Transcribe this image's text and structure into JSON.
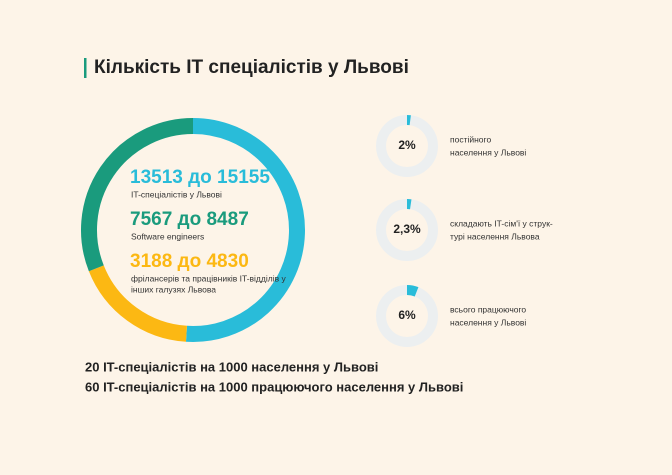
{
  "title": "Кількість IT спеціалістів у Львові",
  "chart_data": [
    {
      "type": "donut",
      "values": [
        51,
        18,
        31
      ],
      "colors": [
        "#29bcd9",
        "#fcb813",
        "#1a9b7d"
      ]
    },
    {
      "type": "donut",
      "values": [
        2
      ],
      "value_labels": [
        "2%"
      ],
      "color": "#29bcd9",
      "caption": [
        "постійного",
        "населення у Львові"
      ]
    },
    {
      "type": "donut",
      "values": [
        2.3
      ],
      "value_labels": [
        "2,3%"
      ],
      "color": "#29bcd9",
      "caption": [
        "складають IT-сім'ї у струк-",
        "турі населення Львова"
      ]
    },
    {
      "type": "donut",
      "values": [
        6
      ],
      "value_labels": [
        "6%"
      ],
      "color": "#29bcd9",
      "caption": [
        "всього працюючого",
        "населення у Львові"
      ]
    }
  ],
  "stats": [
    {
      "value": "13513 до 15155",
      "label": [
        "IT-спеціалістів у Львові"
      ],
      "color": "#29bcd9"
    },
    {
      "value": "7567 до 8487",
      "label": [
        "Software engineers"
      ],
      "color": "#1a9b7d"
    },
    {
      "value": "3188 до 4830",
      "label": [
        "фрілансерів та працівників IT-відділів у",
        "інших галузях Львова"
      ],
      "color": "#fcb813"
    }
  ],
  "footer": [
    "20 IT-спеціалістів на 1000 населення у Львові",
    "60 IT-спеціалістів на 1000 працюючого населення у Львові"
  ]
}
